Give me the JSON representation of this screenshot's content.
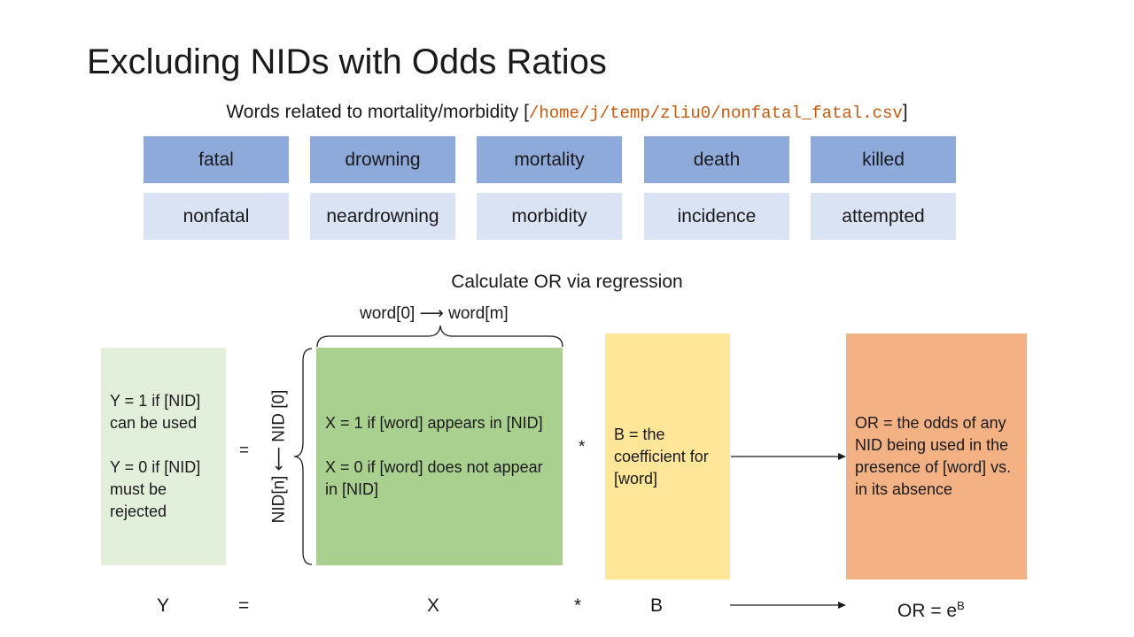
{
  "title": "Excluding NIDs with Odds Ratios",
  "subtitle": {
    "text": "Words related to mortality/morbidity [",
    "path": "/home/j/temp/zliu0/nonfatal_fatal.csv",
    "close": "]"
  },
  "word_pairs": {
    "fatal_words": [
      "fatal",
      "drowning",
      "mortality",
      "death",
      "killed"
    ],
    "nonfatal_words": [
      "nonfatal",
      "neardrowning",
      "morbidity",
      "incidence",
      "attempted"
    ]
  },
  "calc_label": "Calculate OR via regression",
  "word_range": "word[0] ⟶ word[m]",
  "nid_range": "NID[n] ⟵ NID [0]",
  "y_box": {
    "line1": "Y = 1 if [NID] can be used",
    "line2": "Y = 0 if [NID] must be rejected"
  },
  "x_box": {
    "line1": "X = 1 if [word] appears in [NID]",
    "line2": "X = 0 if [word] does not appear in [NID]"
  },
  "b_box": {
    "text": "B = the coefficient for [word]"
  },
  "or_box": {
    "text": "OR = the odds of any NID being used in the presence of [word] vs. in its absence"
  },
  "operators": {
    "equals": "=",
    "times": "*"
  },
  "formula": {
    "y": "Y",
    "equals": "=",
    "x": "X",
    "times": "*",
    "b": "B",
    "or_prefix": "OR = e",
    "or_exponent": "B"
  },
  "colors": {
    "fatal_box": "#8eaadb",
    "nonfatal_box": "#dae3f3",
    "y_box": "#e2efda",
    "x_box": "#a9d08e",
    "b_box": "#ffe699",
    "or_box": "#f4b183",
    "path_text": "#c55a11"
  }
}
